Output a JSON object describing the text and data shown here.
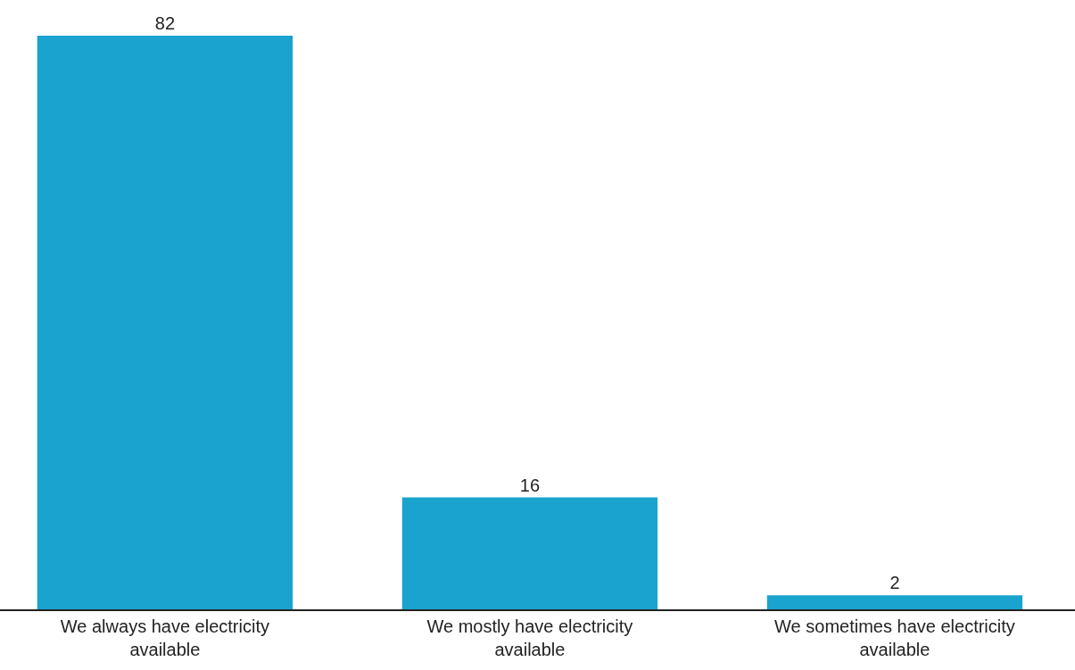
{
  "chart_data": {
    "type": "bar",
    "categories": [
      "We always have electricity\navailable",
      "We mostly have electricity\navailable",
      "We sometimes have electricity\navailable"
    ],
    "values": [
      82,
      16,
      2
    ],
    "color": "#1aa3cf",
    "data_labels": true,
    "grid": false,
    "legend": false,
    "tick_labels": "x"
  }
}
